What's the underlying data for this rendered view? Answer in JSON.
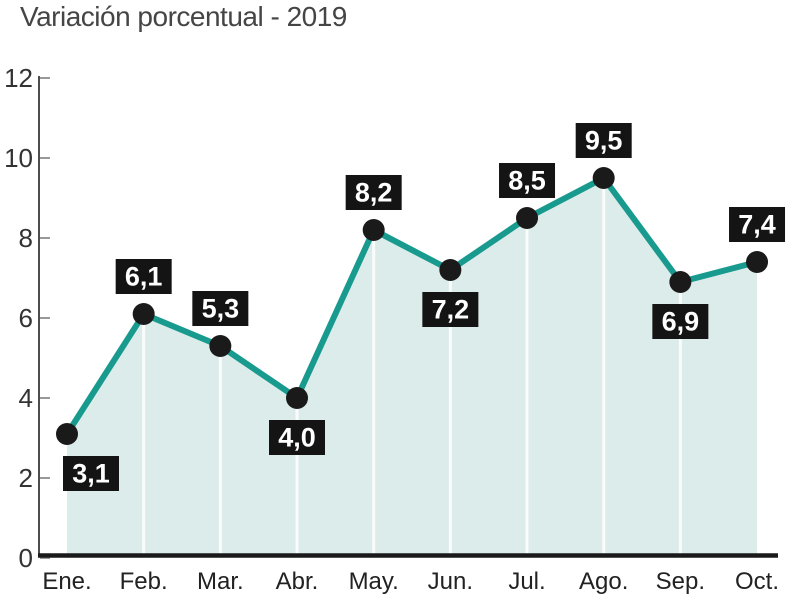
{
  "chart_data": {
    "type": "area",
    "title": "Variación porcentual - 2019",
    "categories": [
      "Ene.",
      "Feb.",
      "Mar.",
      "Abr.",
      "May.",
      "Jun.",
      "Jul.",
      "Ago.",
      "Sep.",
      "Oct."
    ],
    "values": [
      3.1,
      6.1,
      5.3,
      4.0,
      8.2,
      7.2,
      8.5,
      9.5,
      6.9,
      7.4
    ],
    "value_labels": [
      "3,1",
      "6,1",
      "5,3",
      "4,0",
      "8,2",
      "7,2",
      "8,5",
      "9,5",
      "6,9",
      "7,4"
    ],
    "label_positions": [
      "below",
      "above",
      "above",
      "below",
      "above",
      "below",
      "above",
      "above",
      "below",
      "above"
    ],
    "xlabel": "",
    "ylabel": "",
    "ylim": [
      0,
      12
    ],
    "yticks": [
      0,
      2,
      4,
      6,
      8,
      10,
      12
    ],
    "grid": "vertical-white-lines-inside-area",
    "legend": "none",
    "colors": {
      "line": "#189a8e",
      "area_fill": "#dcecea",
      "gridline": "#ffffff",
      "marker": "#1a1a1a",
      "label_box_bg": "#141414",
      "label_box_text": "#ffffff",
      "bottom_axis": "#1a1a1a",
      "y_axis_line": "#4d4d4d",
      "tick": "#999999",
      "y_tick_label": "#333333",
      "x_tick_label": "#222222",
      "title": "#454545"
    }
  }
}
